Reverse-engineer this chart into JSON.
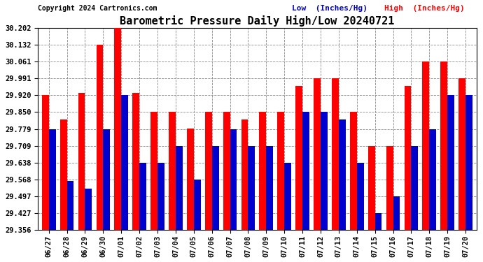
{
  "title": "Barometric Pressure Daily High/Low 20240721",
  "copyright": "Copyright 2024 Cartronics.com",
  "legend_low": "Low  (Inches/Hg)",
  "legend_high": "High  (Inches/Hg)",
  "categories": [
    "06/27",
    "06/28",
    "06/29",
    "06/30",
    "07/01",
    "07/02",
    "07/03",
    "07/04",
    "07/05",
    "07/06",
    "07/07",
    "07/08",
    "07/09",
    "07/10",
    "07/11",
    "07/12",
    "07/13",
    "07/14",
    "07/15",
    "07/16",
    "07/17",
    "07/18",
    "07/19",
    "07/20"
  ],
  "high_values": [
    29.92,
    29.82,
    29.93,
    30.132,
    30.202,
    29.93,
    29.85,
    29.85,
    29.78,
    29.85,
    29.85,
    29.82,
    29.85,
    29.85,
    29.96,
    29.991,
    29.991,
    29.85,
    29.709,
    29.709,
    29.96,
    30.061,
    30.061,
    29.991
  ],
  "low_values": [
    29.779,
    29.56,
    29.53,
    29.779,
    29.92,
    29.638,
    29.638,
    29.709,
    29.568,
    29.709,
    29.779,
    29.709,
    29.709,
    29.638,
    29.85,
    29.85,
    29.82,
    29.638,
    29.427,
    29.497,
    29.709,
    29.779,
    29.92,
    29.92
  ],
  "bar_color_high": "#ff0000",
  "bar_color_low": "#0000cc",
  "background_color": "#ffffff",
  "grid_color": "#888888",
  "title_color": "#000000",
  "copyright_color": "#000000",
  "legend_low_color": "#0000cc",
  "legend_high_color": "#ff0000",
  "ymin": 29.356,
  "ymax": 30.202,
  "yticks": [
    29.356,
    29.427,
    29.497,
    29.568,
    29.638,
    29.709,
    29.779,
    29.85,
    29.92,
    29.991,
    30.061,
    30.132,
    30.202
  ]
}
